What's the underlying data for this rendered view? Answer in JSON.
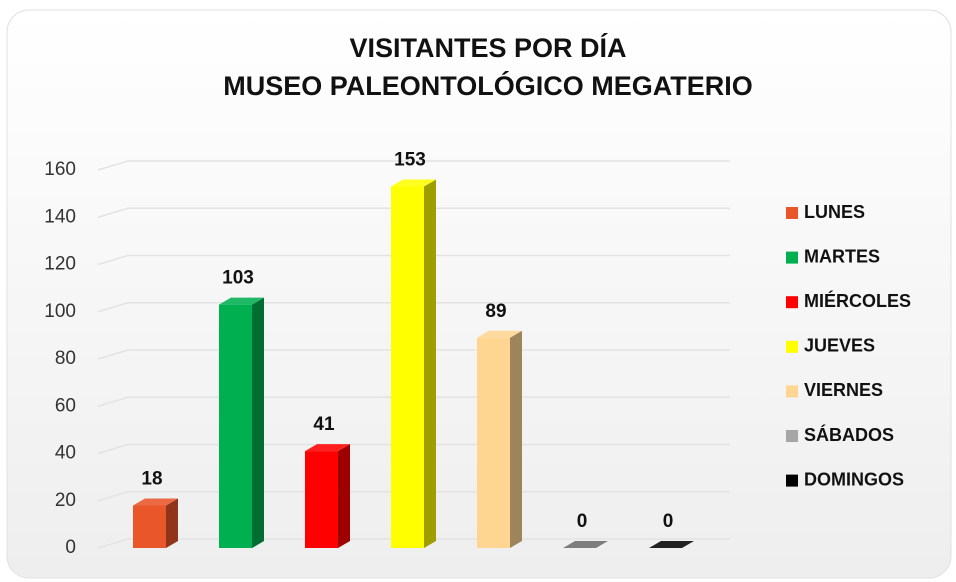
{
  "chart_data": {
    "type": "bar3d",
    "title": [
      "VISITANTES POR DÍA",
      "MUSEO PALEONTOLÓGICO MEGATERIO"
    ],
    "categories": [
      "LUNES",
      "MARTES",
      "MIÉRCOLES",
      "JUEVES",
      "VIERNES",
      "SÁBADOS",
      "DOMINGOS"
    ],
    "values": [
      18,
      103,
      41,
      153,
      89,
      0,
      0
    ],
    "colors": [
      "#e8562a",
      "#00b050",
      "#ff0000",
      "#ffff00",
      "#ffd592",
      "#a6a6a6",
      "#000000"
    ],
    "ylim": [
      0,
      160
    ],
    "yticks": [
      0,
      20,
      40,
      60,
      80,
      100,
      120,
      140,
      160
    ],
    "grid": true,
    "legend": "right"
  }
}
